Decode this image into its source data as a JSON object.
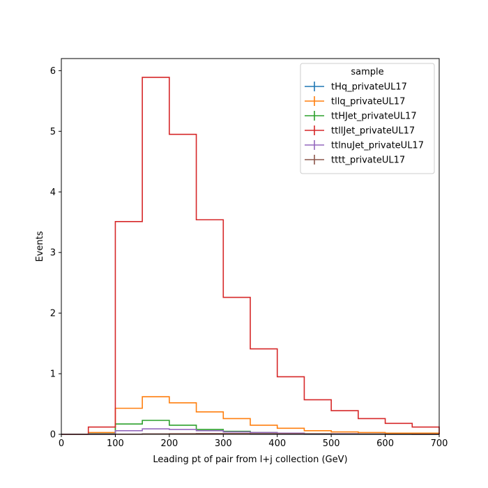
{
  "chart_data": {
    "type": "line",
    "style": "step-histogram",
    "xlabel": "Leading pt of pair from l+j collection (GeV)",
    "ylabel": "Events",
    "xlim": [
      0,
      700
    ],
    "ylim": [
      0,
      6.2
    ],
    "x_ticks": [
      0,
      100,
      200,
      300,
      400,
      500,
      600,
      700
    ],
    "y_ticks": [
      0,
      1,
      2,
      3,
      4,
      5,
      6
    ],
    "grid": false,
    "legend_title": "sample",
    "legend_position": "top-right",
    "bin_edges": [
      0,
      50,
      100,
      150,
      200,
      250,
      300,
      350,
      400,
      450,
      500,
      550,
      600,
      650,
      700
    ],
    "series": [
      {
        "name": "tHq_privateUL17",
        "color": "#1f77b4",
        "values": [
          0,
          0.001,
          0.003,
          0.005,
          0.005,
          0.004,
          0.003,
          0.002,
          0.002,
          0.001,
          0.001,
          0.001,
          0,
          0
        ]
      },
      {
        "name": "tllq_privateUL17",
        "color": "#ff7f0e",
        "values": [
          0,
          0.03,
          0.43,
          0.62,
          0.52,
          0.37,
          0.26,
          0.15,
          0.1,
          0.06,
          0.04,
          0.03,
          0.02,
          0.02
        ]
      },
      {
        "name": "ttHJet_privateUL17",
        "color": "#2ca02c",
        "values": [
          0,
          0.01,
          0.17,
          0.23,
          0.15,
          0.08,
          0.05,
          0.03,
          0.02,
          0.01,
          0.01,
          0.005,
          0.003,
          0.002
        ]
      },
      {
        "name": "ttllJet_privateUL17",
        "color": "#d62728",
        "values": [
          0,
          0.12,
          3.51,
          5.89,
          4.95,
          3.54,
          2.26,
          1.41,
          0.95,
          0.57,
          0.39,
          0.26,
          0.18,
          0.12
        ]
      },
      {
        "name": "ttlnuJet_privateUL17",
        "color": "#9467bd",
        "values": [
          0,
          0.005,
          0.06,
          0.09,
          0.08,
          0.06,
          0.04,
          0.03,
          0.02,
          0.01,
          0.01,
          0.005,
          0.003,
          0.002
        ]
      },
      {
        "name": "tttt_privateUL17",
        "color": "#8c564b",
        "values": [
          0,
          0,
          0.002,
          0.006,
          0.01,
          0.012,
          0.012,
          0.01,
          0.008,
          0.006,
          0.004,
          0.003,
          0.002,
          0.001
        ]
      }
    ]
  }
}
